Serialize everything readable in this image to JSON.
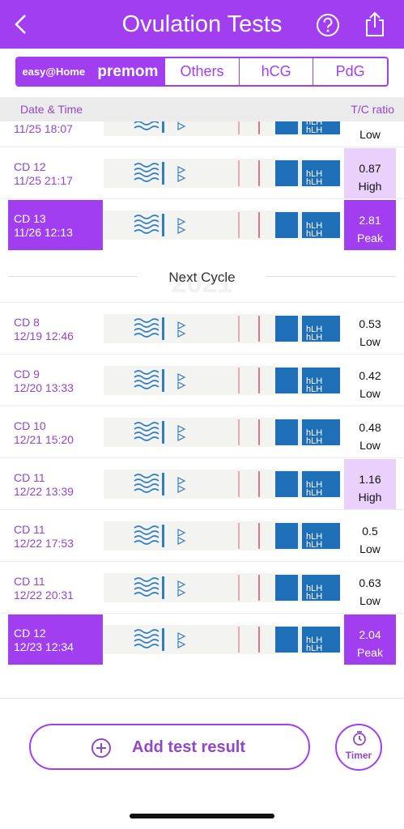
{
  "header": {
    "title": "Ovulation Tests"
  },
  "tabs": [
    "easy@Home",
    "premom",
    "Others",
    "hCG",
    "PdG"
  ],
  "columns": {
    "date": "Date & Time",
    "ratio": "T/C ratio"
  },
  "strip_label": "hLH",
  "rows": [
    {
      "datetime": "11/25 18:07",
      "level": "Low"
    },
    {
      "cd": "CD 12",
      "datetime": "11/25 21:17",
      "ratio": "0.87",
      "level": "High"
    },
    {
      "cd": "CD 13",
      "datetime": "11/26 12:13",
      "ratio": "2.81",
      "level": "Peak"
    }
  ],
  "divider": {
    "year": "2021",
    "label": "Next Cycle"
  },
  "rows2": [
    {
      "cd": "CD 8",
      "datetime": "12/19 12:46",
      "ratio": "0.53",
      "level": "Low"
    },
    {
      "cd": "CD 9",
      "datetime": "12/20 13:33",
      "ratio": "0.42",
      "level": "Low"
    },
    {
      "cd": "CD 10",
      "datetime": "12/21 15:20",
      "ratio": "0.48",
      "level": "Low"
    },
    {
      "cd": "CD 11",
      "datetime": "12/22 13:39",
      "ratio": "1.16",
      "level": "High"
    },
    {
      "cd": "CD 11",
      "datetime": "12/22 17:53",
      "ratio": "0.5",
      "level": "Low"
    },
    {
      "cd": "CD 11",
      "datetime": "12/22 20:31",
      "ratio": "0.63",
      "level": "Low"
    },
    {
      "cd": "CD 12",
      "datetime": "12/23 12:34",
      "ratio": "2.04",
      "level": "Peak"
    }
  ],
  "footer": {
    "add": "Add test result",
    "timer": "Timer"
  }
}
